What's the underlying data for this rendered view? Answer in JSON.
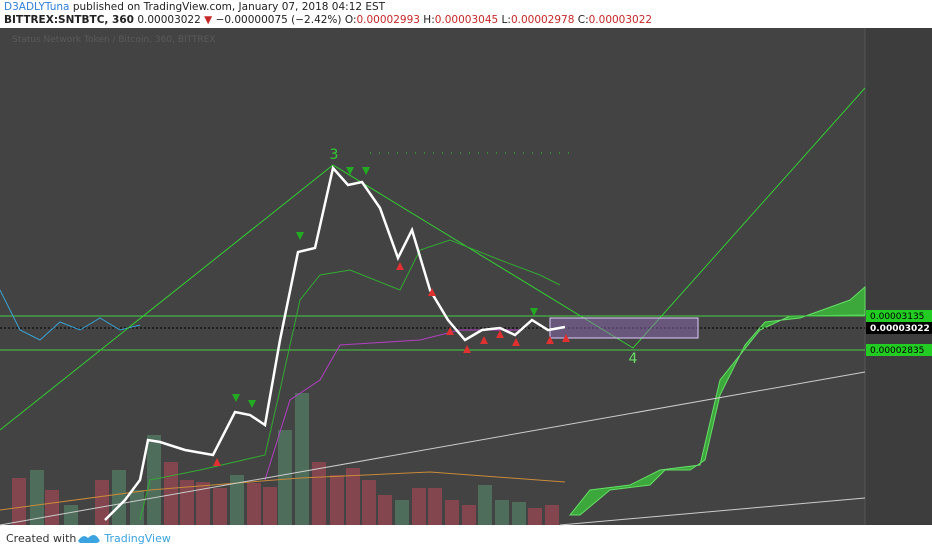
{
  "header": {
    "author": "D3ADLYTuna",
    "published": "published on TradingView.com, January 07, 2018 04:12 EST",
    "symbol": "BITTREX:SNTBTC, 360",
    "last": "0.00003022",
    "change": "−0.00000075 (−2.42%)",
    "open_label": "O:",
    "open": "0.00002993",
    "high_label": "H:",
    "high": "0.00003045",
    "low_label": "L:",
    "low": "0.00002978",
    "close_label": "C:",
    "close": "0.00003022"
  },
  "chart": {
    "watermark": "Status Network Token / Bitcoin, 360, BITTREX",
    "annotations": [
      "3",
      "4"
    ],
    "price_labels": {
      "upper": "0.00003135",
      "current": "0.00003022",
      "lower": "0.00002835"
    }
  },
  "footer": {
    "created_with": "Created with",
    "brand": "TradingView"
  }
}
